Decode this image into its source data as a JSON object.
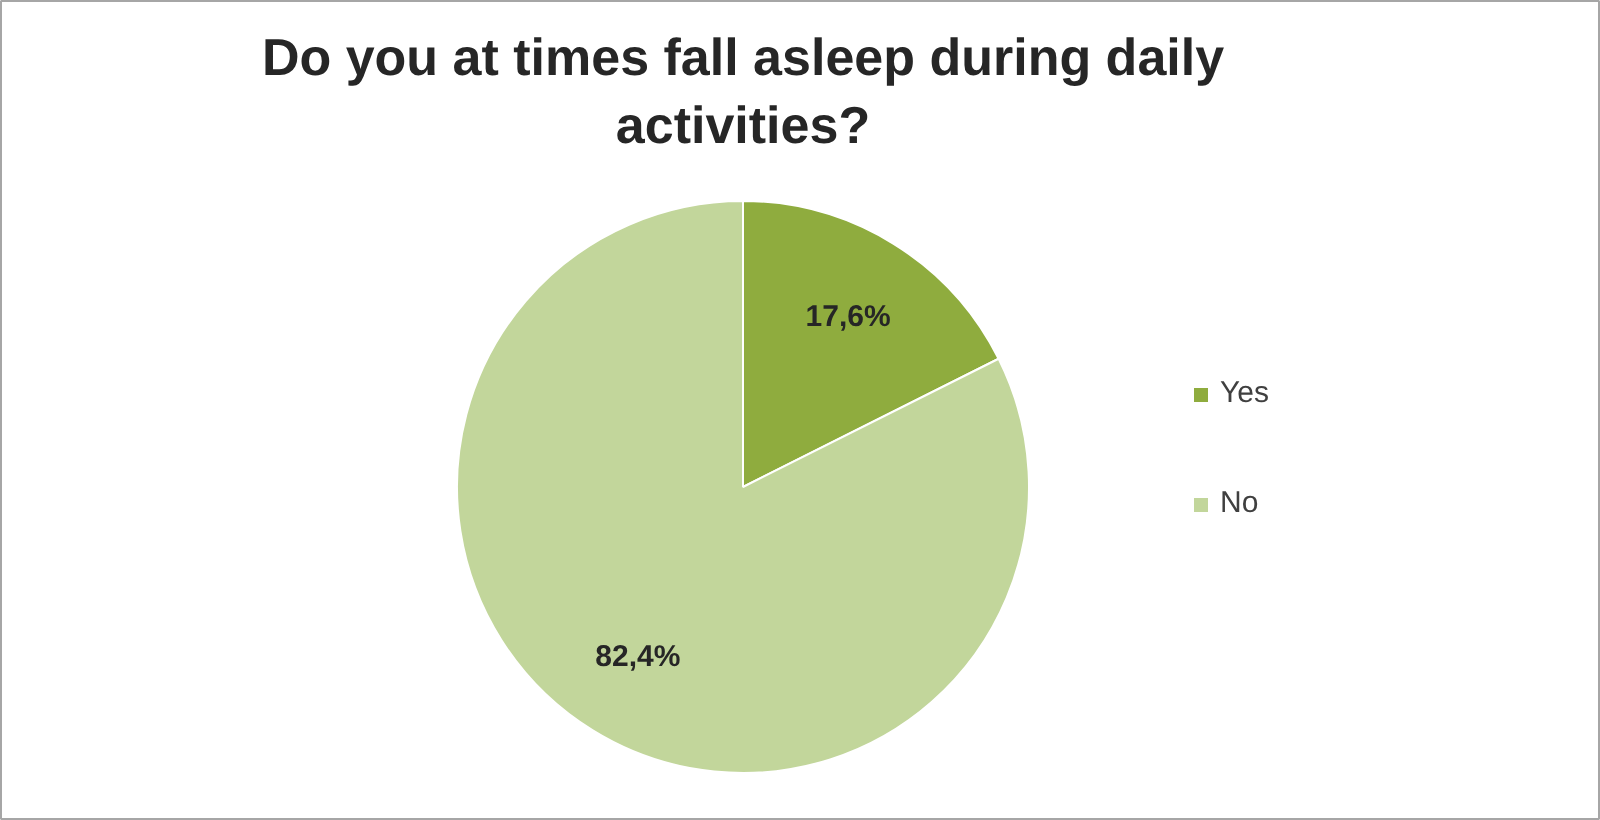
{
  "chart_data": {
    "type": "pie",
    "title": "Do you at times fall asleep during daily activities?",
    "categories": [
      "Yes",
      "No"
    ],
    "values": [
      17.6,
      82.4
    ],
    "colors": [
      "#8fac3e",
      "#c2d69b"
    ],
    "value_labels": [
      "17,6%",
      "82,4%"
    ],
    "legend": "right"
  }
}
